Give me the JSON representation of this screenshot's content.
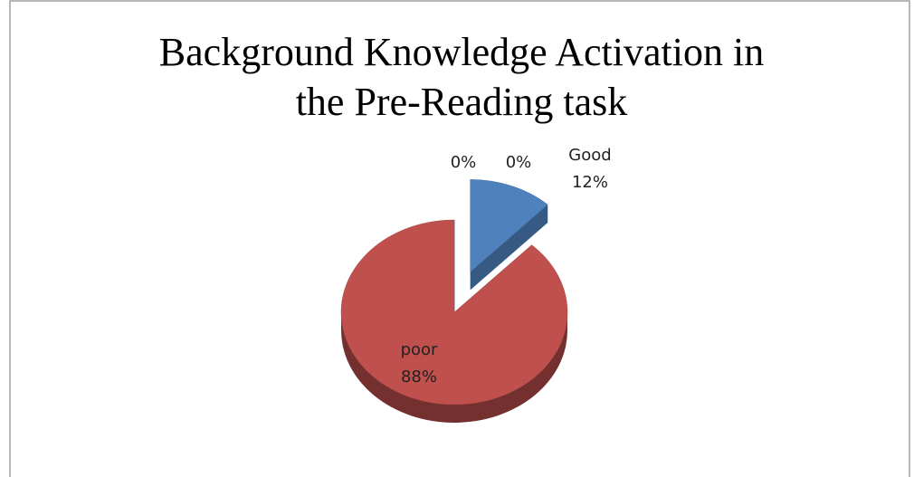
{
  "chart_data": {
    "type": "pie",
    "title": [
      "Background Knowledge Activation in",
      "the Pre-Reading task"
    ],
    "categories": [
      "Good",
      "poor",
      null,
      null
    ],
    "values": [
      12,
      88,
      0,
      0
    ],
    "value_labels": [
      "12%",
      "88%",
      "0%",
      "0%"
    ],
    "colors": [
      "#4f81bd",
      "#c0504d",
      "#9bbb59",
      "#8064a2"
    ],
    "exploded": [
      true,
      false,
      false,
      false
    ]
  }
}
